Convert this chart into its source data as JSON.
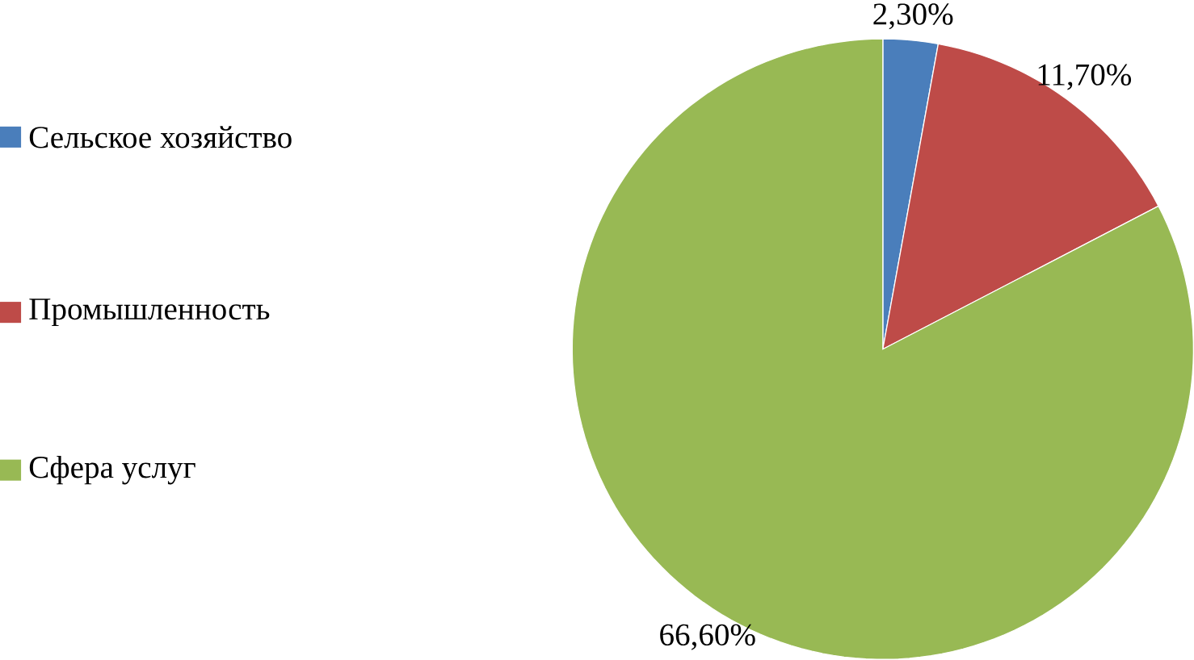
{
  "chart_data": {
    "type": "pie",
    "categories": [
      "Сельское хозяйство",
      "Промышленность",
      "Сфера услуг"
    ],
    "values": [
      2.3,
      11.7,
      66.6
    ],
    "value_labels": [
      "2,30%",
      "11,70%",
      "66,60%"
    ],
    "colors": [
      "#4a7ebb",
      "#be4b48",
      "#98b954"
    ],
    "legend": "left"
  }
}
